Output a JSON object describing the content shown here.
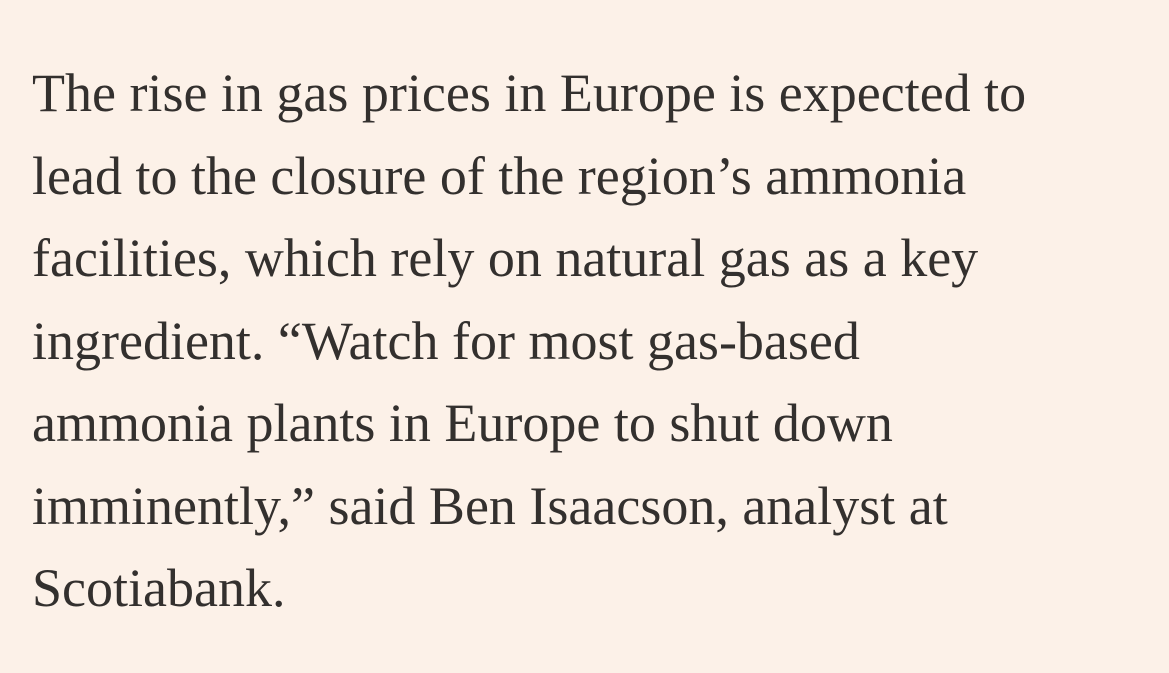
{
  "paragraph": {
    "lines": [
      "The rise in gas prices in Europe is expected to",
      "lead to the closure of the region’s ammonia",
      "facilities, which rely on natural gas as a key",
      "ingredient. “Watch for most gas-based",
      "ammonia plants in Europe to shut down",
      "imminently,” said Ben Isaacson, analyst at",
      "Scotiabank."
    ]
  }
}
